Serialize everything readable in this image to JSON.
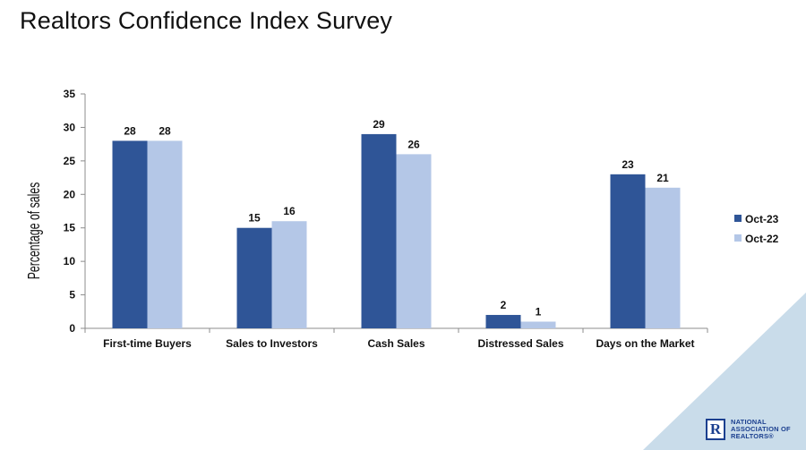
{
  "page": {
    "title": "Realtors Confidence Index Survey",
    "logo_lines": [
      "NATIONAL",
      "ASSOCIATION OF",
      "REALTORS®"
    ],
    "logo_mark": "R"
  },
  "chart_data": {
    "type": "bar",
    "title": "",
    "xlabel": "",
    "ylabel": "Percentage of sales",
    "ylim": [
      0,
      35
    ],
    "yticks": [
      0,
      5,
      10,
      15,
      20,
      25,
      30,
      35
    ],
    "grid": false,
    "legend_position": "right",
    "categories": [
      "First-time Buyers",
      "Sales to Investors",
      "Cash Sales",
      "Distressed Sales",
      "Days on the Market"
    ],
    "series": [
      {
        "name": "Oct-23",
        "color": "#2f5597",
        "values": [
          28,
          15,
          29,
          2,
          23
        ]
      },
      {
        "name": "Oct-22",
        "color": "#b4c7e7",
        "values": [
          28,
          16,
          26,
          1,
          21
        ]
      }
    ]
  }
}
